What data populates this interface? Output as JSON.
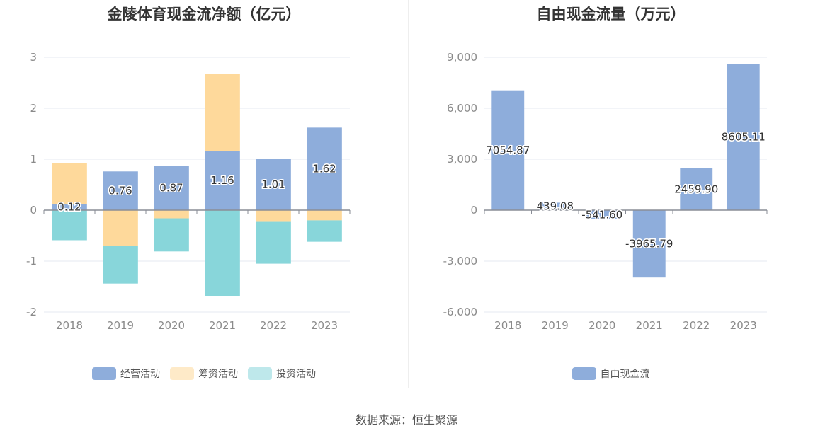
{
  "chart_data": [
    {
      "type": "bar",
      "stacked": true,
      "title": "金陵体育现金流净额（亿元）",
      "categories": [
        "2018",
        "2019",
        "2020",
        "2021",
        "2022",
        "2023"
      ],
      "ylim": [
        -2,
        3
      ],
      "yticks": [
        -2,
        -1,
        0,
        1,
        2,
        3
      ],
      "grid": true,
      "legend_position": "bottom",
      "series": [
        {
          "name": "经营活动",
          "color": "#8eaddb",
          "values": [
            0.12,
            0.76,
            0.87,
            1.16,
            1.01,
            1.62
          ],
          "labels": [
            "0.12",
            "0.76",
            "0.87",
            "1.16",
            "1.01",
            "1.62"
          ]
        },
        {
          "name": "筹资活动",
          "color": "#fed99b",
          "values": [
            0.8,
            -0.7,
            -0.16,
            1.51,
            -0.23,
            -0.2
          ]
        },
        {
          "name": "投资活动",
          "color": "#88d6da",
          "values": [
            -0.59,
            -0.74,
            -0.65,
            -1.69,
            -0.82,
            -0.42
          ]
        }
      ]
    },
    {
      "type": "bar",
      "title": "自由现金流量（万元）",
      "categories": [
        "2018",
        "2019",
        "2020",
        "2021",
        "2022",
        "2023"
      ],
      "ylim": [
        -6000,
        9000
      ],
      "yticks": [
        -6000,
        -3000,
        0,
        3000,
        6000,
        9000
      ],
      "ytick_labels": [
        "-6,000",
        "-3,000",
        "0",
        "3,000",
        "6,000",
        "9,000"
      ],
      "grid": true,
      "legend_position": "bottom",
      "series": [
        {
          "name": "自由现金流",
          "color": "#8eaddb",
          "values": [
            7054.87,
            439.08,
            -541.6,
            -3965.79,
            2459.9,
            8605.11
          ],
          "labels": [
            "7054.87",
            "439.08",
            "-541.60",
            "-3965.79",
            "2459.90",
            "8605.11"
          ]
        }
      ]
    }
  ],
  "source": "数据来源：恒生聚源"
}
